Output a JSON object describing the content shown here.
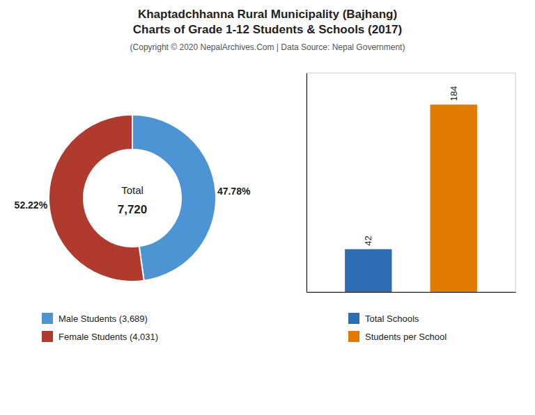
{
  "title": [
    "Khaptadchhanna Rural Municipality (Bajhang)",
    "Charts of Grade 1-12 Students & Schools (2017)"
  ],
  "subtitle": "(Copyright © 2020 NepalArchives.Com | Data Source: Nepal Government)",
  "chart_data": [
    {
      "type": "pie",
      "categories": [
        "Male Students (3,689)",
        "Female Students (4,031)"
      ],
      "values": [
        47.78,
        52.22
      ],
      "value_labels": [
        "47.78%",
        "52.22%"
      ],
      "colors": [
        "#4d94d4",
        "#b03a2e"
      ],
      "annotations": [
        "Total",
        "7,720"
      ],
      "data_labels": true,
      "legend": "bottom"
    },
    {
      "type": "bar",
      "categories": [
        "Total Schools",
        "Students per School"
      ],
      "values": [
        42,
        184
      ],
      "colors": [
        "#2e6db4",
        "#e07b00"
      ],
      "ylim": [
        0,
        215
      ],
      "data_labels": true,
      "tick_labels": false,
      "legend": "bottom"
    }
  ]
}
